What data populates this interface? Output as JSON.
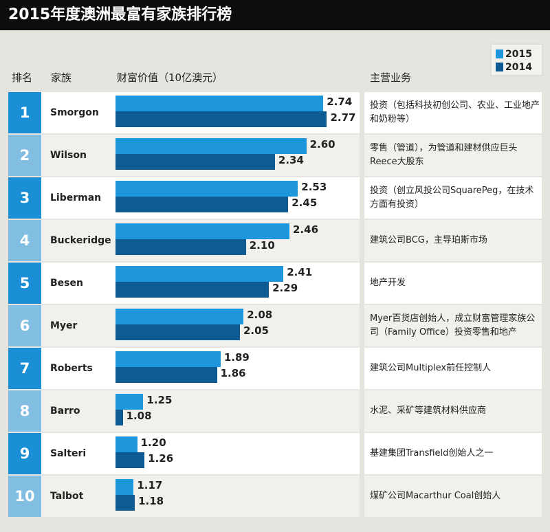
{
  "title": "2015年度澳洲最富有家族排行榜",
  "headers": {
    "rank": "排名",
    "family": "家族",
    "wealth": "财富价值（10亿澳元）",
    "business": "主营业务"
  },
  "colors": {
    "y2015": "#1e96db",
    "y2014": "#0e5a92",
    "rank_odd": "#1a8fd5",
    "rank_even": "#82bde2"
  },
  "chart_data": {
    "type": "bar",
    "title": "2015年度澳洲最富有家族排行榜",
    "ylabel": "财富价值（10亿澳元）",
    "orientation": "horizontal",
    "legend": "top-right",
    "categories": [
      "Smorgon",
      "Wilson",
      "Liberman",
      "Buckeridge",
      "Besen",
      "Myer",
      "Roberts",
      "Barro",
      "Salteri",
      "Talbot"
    ],
    "series": [
      {
        "name": "2015",
        "values": [
          2.74,
          2.6,
          2.53,
          2.46,
          2.41,
          2.08,
          1.89,
          1.25,
          1.2,
          1.17
        ]
      },
      {
        "name": "2014",
        "values": [
          2.77,
          2.34,
          2.45,
          2.1,
          2.29,
          2.05,
          1.86,
          1.08,
          1.26,
          1.18
        ]
      }
    ],
    "xlim": [
      1.02,
      3.08
    ]
  },
  "rows": [
    {
      "rank": "1",
      "name": "Smorgon",
      "desc": "投资（包括科技初创公司、农业、工业地产和奶粉等）"
    },
    {
      "rank": "2",
      "name": "Wilson",
      "desc": "零售（管道），为管道和建材供应巨头Reece大股东"
    },
    {
      "rank": "3",
      "name": "Liberman",
      "desc": "投资（创立风投公司SquarePeg，在技术方面有投资）"
    },
    {
      "rank": "4",
      "name": "Buckeridge",
      "desc": "建筑公司BCG，主导珀斯市场"
    },
    {
      "rank": "5",
      "name": "Besen",
      "desc": "地产开发"
    },
    {
      "rank": "6",
      "name": "Myer",
      "desc": "Myer百货店创始人，成立财富管理家族公司（Family Office）投资零售和地产"
    },
    {
      "rank": "7",
      "name": "Roberts",
      "desc": "建筑公司Multiplex前任控制人"
    },
    {
      "rank": "8",
      "name": "Barro",
      "desc": "水泥、采矿等建筑材料供应商"
    },
    {
      "rank": "9",
      "name": "Salteri",
      "desc": "基建集团Transfield创始人之一"
    },
    {
      "rank": "10",
      "name": "Talbot",
      "desc": "煤矿公司Macarthur Coal创始人"
    }
  ]
}
